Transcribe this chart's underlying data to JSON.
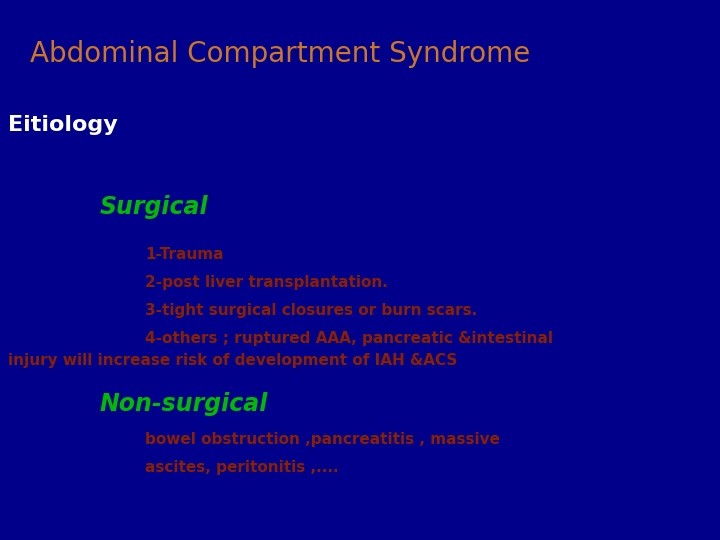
{
  "bg_color": "#00008B",
  "title": "Abdominal Compartment Syndrome",
  "title_color": "#CC7722",
  "title_fontsize": 20,
  "eitiology_label": "Eitiology",
  "eitiology_color": "#FFFFFF",
  "eitiology_fontsize": 16,
  "surgical_label": "Surgical",
  "surgical_color": "#00BB00",
  "surgical_fontsize": 17,
  "surgical_items": [
    "1-Trauma",
    "2-post liver transplantation.",
    "3-tight surgical closures or burn scars.",
    "4-others ; ruptured AAA, pancreatic &intestinal"
  ],
  "surgical_extra": "injury will increase risk of development of IAH &ACS",
  "surgical_items_color": "#8B2000",
  "surgical_items_fontsize": 11,
  "nonsurgical_label": "Non-surgical",
  "nonsurgical_color": "#00BB00",
  "nonsurgical_fontsize": 17,
  "nonsurgical_items": [
    "bowel obstruction ,pancreatitis , massive",
    "ascites, peritonitis ,...."
  ],
  "nonsurgical_items_color": "#8B2000",
  "nonsurgical_items_fontsize": 11
}
